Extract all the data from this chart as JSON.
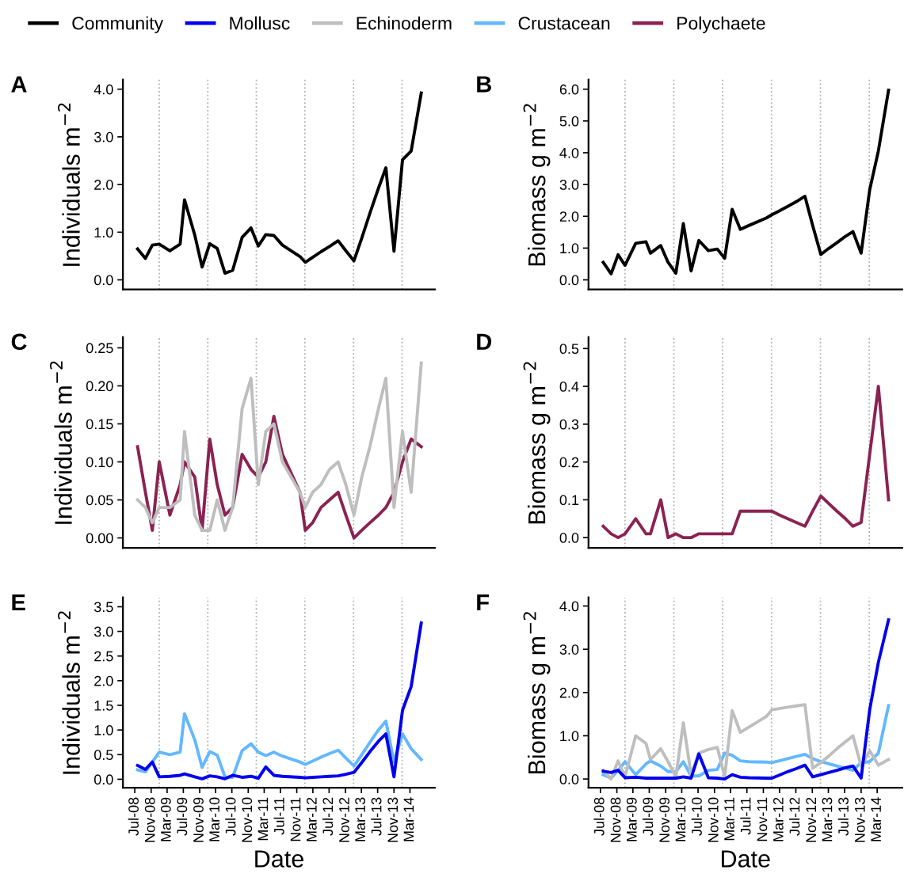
{
  "chart_data": [
    {
      "type": "line",
      "title": "A",
      "ylabel": "Individuals m$^{−2}$",
      "legend": "top",
      "tick_labels": "y",
      "grid": false,
      "line_style": "solid",
      "x": [
        "2008-07-22",
        "2008-09-19",
        "2008-11-10",
        "2009-01-01",
        "2009-03-22",
        "2009-06-07",
        "2009-07-10",
        "2009-09-25",
        "2009-11-19",
        "2010-01-16",
        "2010-03-13",
        "2010-05-10",
        "2010-07-07",
        "2010-09-16",
        "2010-11-22",
        "2011-01-16",
        "2011-03-13",
        "2011-05-13",
        "2011-07-16",
        "2011-11-25",
        "2012-01-04",
        "2012-02-28",
        "2012-05-01",
        "2012-07-04",
        "2012-09-07",
        "2012-11-04",
        "2013-01-04",
        "2013-03-04",
        "2013-05-04",
        "2013-07-07",
        "2013-09-01",
        "2013-11-01",
        "2014-01-04",
        "2014-03-10",
        "2014-05-25"
      ],
      "series": [
        {
          "name": "Community",
          "color": "#000000",
          "values": [
            0.65,
            0.45,
            0.73,
            0.75,
            0.61,
            0.75,
            1.68,
            0.94,
            0.27,
            0.76,
            0.66,
            0.14,
            0.2,
            0.89,
            1.09,
            0.71,
            0.95,
            0.93,
            0.73,
            0.49,
            0.37,
            0.47,
            0.59,
            0.7,
            0.82,
            0.61,
            0.4,
            0.88,
            1.4,
            1.92,
            2.35,
            0.6,
            2.52,
            2.7,
            3.92
          ]
        }
      ],
      "xlim": [
        "2008-04-03",
        "2014-09-04"
      ],
      "ylim": [
        -0.2,
        4.2
      ],
      "yticks": [
        {
          "value": 0,
          "label": "0.0"
        },
        {
          "value": 1,
          "label": "1.0"
        },
        {
          "value": 2,
          "label": "2.0"
        },
        {
          "value": 3,
          "label": "3.0"
        },
        {
          "value": 4,
          "label": "4.0"
        }
      ],
      "ref_lines": [
        {
          "axis": "x",
          "value": "2009-01-01",
          "color": "#b3b3b3",
          "line_style": "dotted"
        },
        {
          "axis": "x",
          "value": "2010-01-01",
          "color": "#b3b3b3",
          "line_style": "dotted"
        },
        {
          "axis": "x",
          "value": "2011-01-01",
          "color": "#b3b3b3",
          "line_style": "dotted"
        },
        {
          "axis": "x",
          "value": "2012-01-01",
          "color": "#b3b3b3",
          "line_style": "dotted"
        },
        {
          "axis": "x",
          "value": "2013-01-01",
          "color": "#b3b3b3",
          "line_style": "dotted"
        },
        {
          "axis": "x",
          "value": "2014-01-01",
          "color": "#b3b3b3",
          "line_style": "dotted"
        }
      ]
    },
    {
      "type": "line",
      "title": "B",
      "ylabel": "Biomass g m$^{−2}$",
      "legend": "top",
      "tick_labels": "y",
      "grid": false,
      "line_style": "solid",
      "x": [
        "2008-07-22",
        "2008-09-19",
        "2008-11-10",
        "2009-01-01",
        "2009-03-22",
        "2009-06-07",
        "2009-07-10",
        "2009-09-25",
        "2009-11-19",
        "2010-01-16",
        "2010-03-13",
        "2010-05-10",
        "2010-07-07",
        "2010-09-16",
        "2010-11-22",
        "2011-01-16",
        "2011-03-13",
        "2011-05-13",
        "2011-07-16",
        "2011-11-25",
        "2012-01-04",
        "2012-02-28",
        "2012-05-01",
        "2012-07-04",
        "2012-09-07",
        "2012-11-04",
        "2013-01-04",
        "2013-03-04",
        "2013-05-04",
        "2013-07-07",
        "2013-09-01",
        "2013-11-01",
        "2014-01-04",
        "2014-03-10",
        "2014-05-25"
      ],
      "series": [
        {
          "name": "Community",
          "color": "#000000",
          "values": [
            0.55,
            0.19,
            0.79,
            0.46,
            1.15,
            1.2,
            0.84,
            1.08,
            0.55,
            0.21,
            1.77,
            0.28,
            1.24,
            0.92,
            0.97,
            0.68,
            2.22,
            1.59,
            1.71,
            1.95,
            2.05,
            2.17,
            2.31,
            2.46,
            2.63,
            1.71,
            0.8,
            0.99,
            1.17,
            1.37,
            1.52,
            0.84,
            2.83,
            4.06,
            5.97
          ]
        }
      ],
      "xlim": [
        "2008-04-03",
        "2014-09-04"
      ],
      "ylim": [
        -0.3,
        6.3
      ],
      "yticks": [
        {
          "value": 0,
          "label": "0.0"
        },
        {
          "value": 1,
          "label": "1.0"
        },
        {
          "value": 2,
          "label": "2.0"
        },
        {
          "value": 3,
          "label": "3.0"
        },
        {
          "value": 4,
          "label": "4.0"
        },
        {
          "value": 5,
          "label": "5.0"
        },
        {
          "value": 6,
          "label": "6.0"
        }
      ],
      "ref_lines": [
        {
          "axis": "x",
          "value": "2009-01-01",
          "color": "#b3b3b3",
          "line_style": "dotted"
        },
        {
          "axis": "x",
          "value": "2010-01-01",
          "color": "#b3b3b3",
          "line_style": "dotted"
        },
        {
          "axis": "x",
          "value": "2011-01-01",
          "color": "#b3b3b3",
          "line_style": "dotted"
        },
        {
          "axis": "x",
          "value": "2012-01-01",
          "color": "#b3b3b3",
          "line_style": "dotted"
        },
        {
          "axis": "x",
          "value": "2013-01-01",
          "color": "#b3b3b3",
          "line_style": "dotted"
        },
        {
          "axis": "x",
          "value": "2014-01-01",
          "color": "#b3b3b3",
          "line_style": "dotted"
        }
      ]
    },
    {
      "type": "line",
      "title": "C",
      "ylabel": "Individuals m$^{−2}$",
      "legend": "top",
      "tick_labels": "y",
      "grid": false,
      "line_style": "solid",
      "x": [
        "2008-07-22",
        "2008-09-19",
        "2008-11-10",
        "2009-01-01",
        "2009-03-22",
        "2009-06-07",
        "2009-07-10",
        "2009-09-25",
        "2009-11-19",
        "2010-01-16",
        "2010-03-13",
        "2010-05-10",
        "2010-07-07",
        "2010-09-16",
        "2010-11-22",
        "2011-01-16",
        "2011-03-13",
        "2011-05-13",
        "2011-07-16",
        "2011-11-25",
        "2012-01-04",
        "2012-02-28",
        "2012-05-01",
        "2012-07-04",
        "2012-09-07",
        "2012-11-04",
        "2013-01-04",
        "2013-03-04",
        "2013-05-04",
        "2013-07-07",
        "2013-09-01",
        "2013-11-01",
        "2014-01-04",
        "2014-03-10",
        "2014-05-25"
      ],
      "series": [
        {
          "name": "Echinoderm",
          "color": "#bebebe",
          "values": [
            0.05,
            0.04,
            0.02,
            0.04,
            0.04,
            0.05,
            0.14,
            0.03,
            0.01,
            0.01,
            0.05,
            0.01,
            0.04,
            0.17,
            0.21,
            0.07,
            0.14,
            0.15,
            0.1,
            0.06,
            0.04,
            0.06,
            0.07,
            0.09,
            0.1,
            0.07,
            0.03,
            0.08,
            0.12,
            0.17,
            0.21,
            0.04,
            0.14,
            0.06,
            0.23
          ]
        },
        {
          "name": "Polychaete",
          "color": "#8b2252",
          "values": [
            0.12,
            0.06,
            0.01,
            0.1,
            0.03,
            0.07,
            0.1,
            0.08,
            0.01,
            0.13,
            0.07,
            0.03,
            0.04,
            0.11,
            0.09,
            0.08,
            0.1,
            0.16,
            0.11,
            0.06,
            0.01,
            0.02,
            0.04,
            0.05,
            0.06,
            0.03,
            0.0,
            0.01,
            0.02,
            0.03,
            0.04,
            0.06,
            0.1,
            0.13,
            0.12
          ]
        }
      ],
      "xlim": [
        "2008-04-03",
        "2014-09-04"
      ],
      "ylim": [
        -0.013,
        0.264
      ],
      "yticks": [
        {
          "value": 0,
          "label": "0.00"
        },
        {
          "value": 0.05,
          "label": "0.05"
        },
        {
          "value": 0.1,
          "label": "0.10"
        },
        {
          "value": 0.15,
          "label": "0.15"
        },
        {
          "value": 0.2,
          "label": "0.20"
        },
        {
          "value": 0.25,
          "label": "0.25"
        }
      ],
      "ref_lines": [
        {
          "axis": "x",
          "value": "2009-01-01",
          "color": "#b3b3b3",
          "line_style": "dotted"
        },
        {
          "axis": "x",
          "value": "2010-01-01",
          "color": "#b3b3b3",
          "line_style": "dotted"
        },
        {
          "axis": "x",
          "value": "2011-01-01",
          "color": "#b3b3b3",
          "line_style": "dotted"
        },
        {
          "axis": "x",
          "value": "2012-01-01",
          "color": "#b3b3b3",
          "line_style": "dotted"
        },
        {
          "axis": "x",
          "value": "2013-01-01",
          "color": "#b3b3b3",
          "line_style": "dotted"
        },
        {
          "axis": "x",
          "value": "2014-01-01",
          "color": "#b3b3b3",
          "line_style": "dotted"
        }
      ]
    },
    {
      "type": "line",
      "title": "D",
      "ylabel": "Biomass g m$^{−2}$",
      "legend": "top",
      "tick_labels": "y",
      "grid": false,
      "line_style": "solid",
      "x": [
        "2008-07-22",
        "2008-09-19",
        "2008-11-10",
        "2009-01-01",
        "2009-03-22",
        "2009-06-07",
        "2009-07-10",
        "2009-09-25",
        "2009-11-19",
        "2010-01-16",
        "2010-03-13",
        "2010-05-10",
        "2010-07-07",
        "2010-09-16",
        "2010-11-22",
        "2011-01-16",
        "2011-03-13",
        "2011-05-13",
        "2011-07-16",
        "2011-11-25",
        "2012-01-04",
        "2012-02-28",
        "2012-05-01",
        "2012-07-04",
        "2012-09-07",
        "2012-11-04",
        "2013-01-04",
        "2013-03-04",
        "2013-05-04",
        "2013-07-07",
        "2013-09-01",
        "2013-11-01",
        "2014-01-04",
        "2014-03-10",
        "2014-05-25"
      ],
      "series": [
        {
          "name": "Polychaete",
          "color": "#8b2252",
          "values": [
            0.03,
            0.01,
            0.0,
            0.01,
            0.05,
            0.01,
            0.01,
            0.1,
            0.0,
            0.01,
            0.0,
            0.0,
            0.01,
            0.01,
            0.01,
            0.01,
            0.01,
            0.07,
            0.07,
            0.07,
            0.07,
            0.06,
            0.05,
            0.04,
            0.03,
            0.07,
            0.11,
            0.09,
            0.07,
            0.05,
            0.03,
            0.04,
            0.22,
            0.4,
            0.1
          ]
        }
      ],
      "xlim": [
        "2008-04-03",
        "2014-09-04"
      ],
      "ylim": [
        -0.027,
        0.53
      ],
      "yticks": [
        {
          "value": 0,
          "label": "0.0"
        },
        0.1,
        0.2,
        0.3,
        0.4,
        0.5
      ],
      "ref_lines": [
        {
          "axis": "x",
          "value": "2009-01-01",
          "color": "#b3b3b3",
          "line_style": "dotted"
        },
        {
          "axis": "x",
          "value": "2010-01-01",
          "color": "#b3b3b3",
          "line_style": "dotted"
        },
        {
          "axis": "x",
          "value": "2011-01-01",
          "color": "#b3b3b3",
          "line_style": "dotted"
        },
        {
          "axis": "x",
          "value": "2012-01-01",
          "color": "#b3b3b3",
          "line_style": "dotted"
        },
        {
          "axis": "x",
          "value": "2013-01-01",
          "color": "#b3b3b3",
          "line_style": "dotted"
        },
        {
          "axis": "x",
          "value": "2014-01-01",
          "color": "#b3b3b3",
          "line_style": "dotted"
        }
      ]
    },
    {
      "type": "line",
      "title": "E",
      "ylabel": "Individuals m$^{−2}$",
      "xlabel": "Date",
      "legend": "top",
      "grid": false,
      "line_style": "solid",
      "x": [
        "2008-07-22",
        "2008-09-19",
        "2008-11-10",
        "2009-01-01",
        "2009-03-22",
        "2009-06-07",
        "2009-07-10",
        "2009-09-25",
        "2009-11-19",
        "2010-01-16",
        "2010-03-13",
        "2010-05-10",
        "2010-07-07",
        "2010-09-16",
        "2010-11-22",
        "2011-01-16",
        "2011-03-13",
        "2011-05-13",
        "2011-07-16",
        "2011-11-25",
        "2012-01-04",
        "2012-02-28",
        "2012-05-01",
        "2012-07-04",
        "2012-09-07",
        "2012-11-04",
        "2013-01-04",
        "2013-03-04",
        "2013-05-04",
        "2013-07-07",
        "2013-09-01",
        "2013-11-01",
        "2014-01-04",
        "2014-03-10",
        "2014-05-25"
      ],
      "series": [
        {
          "name": "Mollusc",
          "color": "#0000ee",
          "values": [
            0.28,
            0.2,
            0.35,
            0.05,
            0.06,
            0.08,
            0.11,
            0.05,
            0.01,
            0.07,
            0.05,
            0.01,
            0.08,
            0.04,
            0.06,
            0.02,
            0.25,
            0.08,
            0.06,
            0.04,
            0.03,
            0.04,
            0.05,
            0.06,
            0.07,
            0.1,
            0.14,
            0.34,
            0.56,
            0.77,
            0.92,
            0.05,
            1.4,
            1.88,
            3.17
          ]
        },
        {
          "name": "Crustacean",
          "color": "#63b8ff",
          "values": [
            0.19,
            0.15,
            0.35,
            0.55,
            0.5,
            0.55,
            1.33,
            0.8,
            0.24,
            0.56,
            0.49,
            0.05,
            0.04,
            0.58,
            0.72,
            0.55,
            0.48,
            0.55,
            0.47,
            0.35,
            0.3,
            0.37,
            0.45,
            0.52,
            0.59,
            0.43,
            0.27,
            0.5,
            0.75,
            1.0,
            1.18,
            0.35,
            0.92,
            0.62,
            0.4
          ]
        }
      ],
      "xlim": [
        "2008-04-03",
        "2014-09-04"
      ],
      "ylim": [
        -0.17,
        3.69
      ],
      "xticks": [
        {
          "value": "2008-07-01",
          "label": "Jul-08"
        },
        {
          "value": "2008-11-01",
          "label": "Nov-08"
        },
        {
          "value": "2009-03-01",
          "label": "Mar-09"
        },
        {
          "value": "2009-07-01",
          "label": "Jul-09"
        },
        {
          "value": "2009-11-01",
          "label": "Nov-09"
        },
        {
          "value": "2010-03-01",
          "label": "Mar-10"
        },
        {
          "value": "2010-07-01",
          "label": "Jul-10"
        },
        {
          "value": "2010-11-01",
          "label": "Nov-10"
        },
        {
          "value": "2011-03-01",
          "label": "Mar-11"
        },
        {
          "value": "2011-07-01",
          "label": "Jul-11"
        },
        {
          "value": "2011-11-01",
          "label": "Nov-11"
        },
        {
          "value": "2012-03-01",
          "label": "Mar-12"
        },
        {
          "value": "2012-07-01",
          "label": "Jul-12"
        },
        {
          "value": "2012-11-01",
          "label": "Nov-12"
        },
        {
          "value": "2013-03-01",
          "label": "Mar-13"
        },
        {
          "value": "2013-07-01",
          "label": "Jul-13"
        },
        {
          "value": "2013-11-01",
          "label": "Nov-13"
        },
        {
          "value": "2014-03-01",
          "label": "Mar-14"
        }
      ],
      "yticks": [
        {
          "value": 0,
          "label": "0.0"
        },
        0.5,
        {
          "value": 1,
          "label": "1.0"
        },
        1.5,
        {
          "value": 2,
          "label": "2.0"
        },
        2.5,
        {
          "value": 3,
          "label": "3.0"
        },
        3.5
      ],
      "ref_lines": [
        {
          "axis": "x",
          "value": "2009-01-01",
          "color": "#b3b3b3",
          "line_style": "dotted"
        },
        {
          "axis": "x",
          "value": "2010-01-01",
          "color": "#b3b3b3",
          "line_style": "dotted"
        },
        {
          "axis": "x",
          "value": "2011-01-01",
          "color": "#b3b3b3",
          "line_style": "dotted"
        },
        {
          "axis": "x",
          "value": "2012-01-01",
          "color": "#b3b3b3",
          "line_style": "dotted"
        },
        {
          "axis": "x",
          "value": "2013-01-01",
          "color": "#b3b3b3",
          "line_style": "dotted"
        },
        {
          "axis": "x",
          "value": "2014-01-01",
          "color": "#b3b3b3",
          "line_style": "dotted"
        }
      ]
    },
    {
      "type": "line",
      "title": "F",
      "ylabel": "Biomass g m$^{−2}$",
      "xlabel": "Date",
      "legend": "top",
      "grid": false,
      "line_style": "solid",
      "x": [
        "2008-07-22",
        "2008-09-19",
        "2008-11-10",
        "2009-01-01",
        "2009-03-22",
        "2009-06-07",
        "2009-07-10",
        "2009-09-25",
        "2009-11-19",
        "2010-01-16",
        "2010-03-13",
        "2010-05-10",
        "2010-07-07",
        "2010-09-16",
        "2010-11-22",
        "2011-01-16",
        "2011-03-13",
        "2011-05-13",
        "2011-07-16",
        "2011-11-25",
        "2012-01-04",
        "2012-02-28",
        "2012-05-01",
        "2012-07-04",
        "2012-09-07",
        "2012-11-04",
        "2013-01-04",
        "2013-03-04",
        "2013-05-04",
        "2013-07-07",
        "2013-09-01",
        "2013-11-01",
        "2014-01-04",
        "2014-03-10",
        "2014-05-25"
      ],
      "series": [
        {
          "name": "Mollusc",
          "color": "#0000ee",
          "values": [
            0.18,
            0.15,
            0.2,
            0.03,
            0.04,
            0.02,
            0.02,
            0.02,
            0.02,
            0.02,
            0.05,
            0.02,
            0.58,
            0.03,
            0.02,
            0.0,
            0.1,
            0.04,
            0.03,
            0.02,
            0.02,
            0.09,
            0.17,
            0.24,
            0.32,
            0.05,
            0.1,
            0.15,
            0.2,
            0.26,
            0.3,
            0.02,
            1.6,
            2.7,
            3.68
          ]
        },
        {
          "name": "Echinoderm",
          "color": "#bebebe",
          "values": [
            0.2,
            0.0,
            0.42,
            0.05,
            1.0,
            0.82,
            0.45,
            0.7,
            0.4,
            0.05,
            1.3,
            0.1,
            0.6,
            0.68,
            0.73,
            0.05,
            1.58,
            1.08,
            1.2,
            1.45,
            1.6,
            1.63,
            1.66,
            1.69,
            1.72,
            0.25,
            0.38,
            0.53,
            0.7,
            0.86,
            1.0,
            0.3,
            0.65,
            0.32,
            0.45
          ]
        },
        {
          "name": "Crustacean",
          "color": "#63b8ff",
          "values": [
            0.1,
            0.02,
            0.2,
            0.4,
            0.1,
            0.35,
            0.42,
            0.3,
            0.17,
            0.17,
            0.4,
            0.07,
            0.07,
            0.2,
            0.22,
            0.6,
            0.55,
            0.42,
            0.4,
            0.39,
            0.38,
            0.42,
            0.47,
            0.52,
            0.57,
            0.47,
            0.4,
            0.35,
            0.3,
            0.25,
            0.2,
            0.38,
            0.4,
            0.6,
            1.7
          ]
        }
      ],
      "xlim": [
        "2008-04-03",
        "2014-09-04"
      ],
      "ylim": [
        -0.2,
        4.2
      ],
      "xticks": [
        {
          "value": "2008-07-01",
          "label": "Jul-08"
        },
        {
          "value": "2008-11-01",
          "label": "Nov-08"
        },
        {
          "value": "2009-03-01",
          "label": "Mar-09"
        },
        {
          "value": "2009-07-01",
          "label": "Jul-09"
        },
        {
          "value": "2009-11-01",
          "label": "Nov-09"
        },
        {
          "value": "2010-03-01",
          "label": "Mar-10"
        },
        {
          "value": "2010-07-01",
          "label": "Jul-10"
        },
        {
          "value": "2010-11-01",
          "label": "Nov-10"
        },
        {
          "value": "2011-03-01",
          "label": "Mar-11"
        },
        {
          "value": "2011-07-01",
          "label": "Jul-11"
        },
        {
          "value": "2011-11-01",
          "label": "Nov-11"
        },
        {
          "value": "2012-03-01",
          "label": "Mar-12"
        },
        {
          "value": "2012-07-01",
          "label": "Jul-12"
        },
        {
          "value": "2012-11-01",
          "label": "Nov-12"
        },
        {
          "value": "2013-03-01",
          "label": "Mar-13"
        },
        {
          "value": "2013-07-01",
          "label": "Jul-13"
        },
        {
          "value": "2013-11-01",
          "label": "Nov-13"
        },
        {
          "value": "2014-03-01",
          "label": "Mar-14"
        }
      ],
      "yticks": [
        {
          "value": 0,
          "label": "0.0"
        },
        {
          "value": 1,
          "label": "1.0"
        },
        {
          "value": 2,
          "label": "2.0"
        },
        {
          "value": 3,
          "label": "3.0"
        },
        {
          "value": 4,
          "label": "4.0"
        }
      ],
      "ref_lines": [
        {
          "axis": "x",
          "value": "2009-01-01",
          "color": "#b3b3b3",
          "line_style": "dotted"
        },
        {
          "axis": "x",
          "value": "2010-01-01",
          "color": "#b3b3b3",
          "line_style": "dotted"
        },
        {
          "axis": "x",
          "value": "2011-01-01",
          "color": "#b3b3b3",
          "line_style": "dotted"
        },
        {
          "axis": "x",
          "value": "2012-01-01",
          "color": "#b3b3b3",
          "line_style": "dotted"
        },
        {
          "axis": "x",
          "value": "2013-01-01",
          "color": "#b3b3b3",
          "line_style": "dotted"
        },
        {
          "axis": "x",
          "value": "2014-01-01",
          "color": "#b3b3b3",
          "line_style": "dotted"
        }
      ]
    }
  ]
}
